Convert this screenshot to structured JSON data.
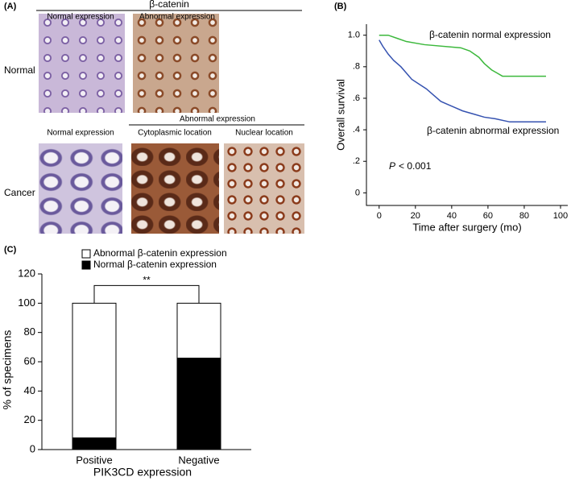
{
  "panel_labels": [
    "(A)",
    "(B)",
    "(C)"
  ],
  "histology": {
    "title": "β-catenin",
    "column_labels": [
      "Normal expression",
      "Abnormal expression"
    ],
    "row_labels": [
      "Normal",
      "Cancer"
    ],
    "cancer_header": "Abnormal expression",
    "cancer_columns": [
      "Normal expression",
      "Cytoplasmic location",
      "Nuclear location"
    ]
  },
  "chart_data": [
    {
      "type": "line",
      "x_label": "Time after surgery (mo)",
      "y_label": "Overall survival",
      "xlim": [
        -7,
        104
      ],
      "xticks": [
        0,
        20,
        40,
        60,
        80,
        100
      ],
      "ylim": [
        -0.08,
        1.07
      ],
      "yticks": [
        0,
        {
          "value": 0.2,
          "label": ".2"
        },
        {
          "value": 0.4,
          "label": ".4"
        },
        {
          "value": 0.6,
          "label": ".6"
        },
        {
          "value": 0.8,
          "label": ".8"
        },
        {
          "value": 1.0,
          "label": "1.0"
        }
      ],
      "annotation": {
        "italic": "P",
        "text": "< 0.001"
      },
      "series": [
        {
          "name": "β-catenin normal expression",
          "color": "#3cb83c",
          "x": [
            0,
            5,
            10,
            15,
            25,
            45,
            50,
            55,
            58,
            62,
            65,
            68,
            92
          ],
          "values": [
            1.0,
            1.0,
            0.98,
            0.96,
            0.94,
            0.92,
            0.9,
            0.86,
            0.82,
            0.78,
            0.76,
            0.74,
            0.74
          ]
        },
        {
          "name": "β-catenin abnormal expression",
          "color": "#3552b0",
          "x": [
            0,
            2,
            5,
            8,
            12,
            15,
            18,
            22,
            26,
            30,
            34,
            38,
            42,
            46,
            52,
            58,
            64,
            72,
            92
          ],
          "values": [
            0.97,
            0.93,
            0.88,
            0.84,
            0.8,
            0.76,
            0.72,
            0.69,
            0.66,
            0.62,
            0.58,
            0.56,
            0.54,
            0.52,
            0.5,
            0.48,
            0.47,
            0.45,
            0.45
          ]
        }
      ]
    },
    {
      "type": "bar",
      "stacked": true,
      "x_label": "PIK3CD expression",
      "y_label": "% of specimens",
      "categories": [
        "Positive",
        "Negative"
      ],
      "ylim": [
        0,
        120
      ],
      "yticks": [
        0,
        20,
        40,
        60,
        80,
        100,
        120
      ],
      "significance": "**",
      "series": [
        {
          "name": "Normal β-catenin expression",
          "color": "#000000",
          "values": [
            8,
            62.5
          ]
        },
        {
          "name": "Abnormal β-catenin expression",
          "color": "#ffffff",
          "values": [
            92,
            37.5
          ]
        }
      ]
    }
  ]
}
